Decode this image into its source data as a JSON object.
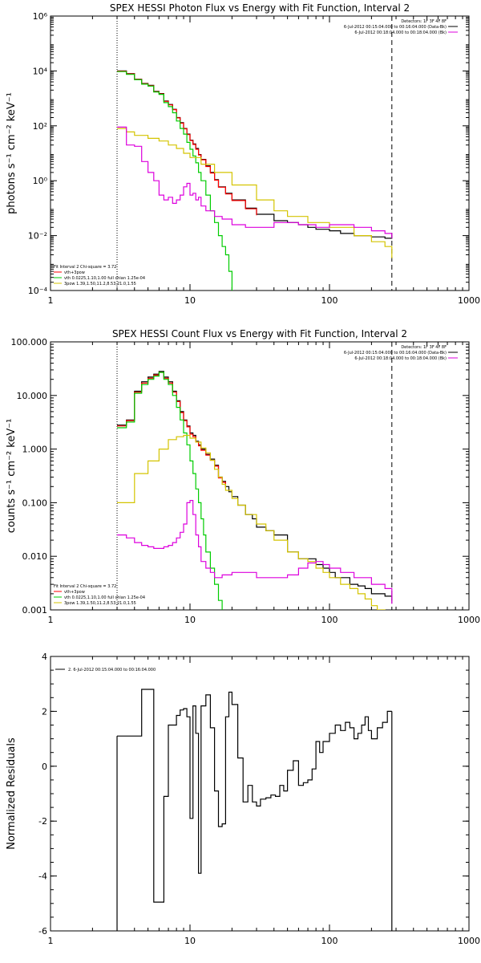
{
  "chart_data": [
    {
      "type": "line",
      "title": "SPEX HESSI Photon Flux vs Energy with Fit Function, Interval 2",
      "ylabel": "photons s⁻¹ cm⁻² keV⁻¹",
      "xlog": true,
      "ylog": true,
      "xlim": [
        1,
        1000
      ],
      "ylim": [
        0.0001,
        1000000
      ],
      "x_ticks": [
        {
          "v": 1,
          "label": "1"
        },
        {
          "v": 10,
          "label": "10"
        },
        {
          "v": 100,
          "label": "100"
        },
        {
          "v": 1000,
          "label": "1000"
        }
      ],
      "y_ticks": [
        {
          "v": 0.0001,
          "label": "10⁻⁴"
        },
        {
          "v": 0.01,
          "label": "10⁻²"
        },
        {
          "v": 1,
          "label": "10⁰"
        },
        {
          "v": 100,
          "label": "10²"
        },
        {
          "v": 10000,
          "label": "10⁴"
        },
        {
          "v": 1000000,
          "label": "10⁶"
        }
      ],
      "vlines": [
        {
          "x": 3,
          "style": "dotted"
        },
        {
          "x": 280,
          "style": "dashed"
        }
      ],
      "legend_right": [
        "Detectors: 1F 3F 4F 8F",
        "6-Jul-2012 00:15:04.000 to 00:16:04.000 (Data-Bk)",
        "6-Jul-2012 00:18:04.000 to 00:18:04.000 (Bk)"
      ],
      "legend_left": [
        "Fit Interval 2   Chi-square = 3.72",
        "vth+3pow",
        "vth 0.0225,1.10,1.00  full chian 1.25e-04",
        "3pow 1.39,1.50,11.2,8.53,21.0,1.55"
      ],
      "series": [
        {
          "name": "Data-Bk",
          "color": "#000000",
          "x": [
            3,
            3.5,
            4,
            4.5,
            5,
            5.5,
            6,
            6.5,
            7,
            7.5,
            8,
            8.5,
            9,
            9.5,
            10,
            10.5,
            11,
            11.5,
            12,
            13,
            14,
            15,
            16,
            18,
            20,
            25,
            30,
            40,
            50,
            60,
            70,
            80,
            100,
            120,
            150,
            200,
            250,
            280
          ],
          "y": [
            10000,
            8000,
            5000,
            3500,
            3000,
            1800,
            1500,
            800,
            600,
            400,
            200,
            130,
            80,
            50,
            30,
            22,
            15,
            9,
            6,
            3.5,
            2,
            1.1,
            0.6,
            0.35,
            0.2,
            0.1,
            0.06,
            0.035,
            0.03,
            0.025,
            0.02,
            0.017,
            0.015,
            0.012,
            0.01,
            0.009,
            0.008,
            0.011
          ]
        },
        {
          "name": "vth+3pow",
          "color": "#ff0000",
          "x": [
            3,
            3.5,
            4,
            4.5,
            5,
            5.5,
            6,
            6.5,
            7,
            7.5,
            8,
            8.5,
            9,
            9.5,
            10,
            10.5,
            11,
            11.5,
            12,
            13,
            14,
            15,
            16,
            18,
            20,
            25,
            30
          ],
          "y": [
            9800,
            7800,
            4900,
            3400,
            2900,
            1750,
            1450,
            780,
            580,
            390,
            195,
            125,
            78,
            48,
            29,
            21,
            14,
            8.7,
            5.8,
            3.3,
            1.9,
            1.05,
            0.58,
            0.33,
            0.19,
            0.095,
            0.055
          ]
        },
        {
          "name": "vth",
          "color": "#00cc00",
          "x": [
            3,
            3.5,
            4,
            4.5,
            5,
            5.5,
            6,
            6.5,
            7,
            7.5,
            8,
            8.5,
            9,
            9.5,
            10,
            10.5,
            11,
            11.5,
            12,
            13,
            14,
            15,
            16,
            17,
            18,
            19,
            20
          ],
          "y": [
            9500,
            7500,
            4800,
            3300,
            2800,
            1700,
            1400,
            700,
            500,
            300,
            150,
            80,
            50,
            25,
            14,
            8,
            4.5,
            2,
            1,
            0.3,
            0.08,
            0.03,
            0.01,
            0.004,
            0.002,
            0.0005,
            0.0001
          ]
        },
        {
          "name": "3pow",
          "color": "#d4c400",
          "x": [
            3,
            3.5,
            4,
            5,
            6,
            7,
            8,
            9,
            10,
            12,
            15,
            20,
            30,
            40,
            50,
            70,
            100,
            150,
            200,
            250,
            280
          ],
          "y": [
            80,
            60,
            45,
            35,
            28,
            20,
            15,
            10,
            7,
            4,
            2,
            0.7,
            0.2,
            0.08,
            0.05,
            0.03,
            0.02,
            0.01,
            0.006,
            0.004,
            0.0015
          ]
        },
        {
          "name": "background",
          "color": "#dd00dd",
          "x": [
            3,
            3.5,
            4,
            4.5,
            5,
            5.5,
            6,
            6.5,
            7,
            7.5,
            8,
            8.5,
            9,
            9.5,
            10,
            10.5,
            11,
            11.5,
            12,
            13,
            14,
            15,
            17,
            20,
            25,
            30,
            40,
            50,
            60,
            80,
            100,
            150,
            200,
            250,
            280
          ],
          "y": [
            90,
            20,
            18,
            5,
            2,
            1,
            0.3,
            0.2,
            0.25,
            0.15,
            0.2,
            0.3,
            0.6,
            0.8,
            0.3,
            0.35,
            0.2,
            0.25,
            0.12,
            0.08,
            0.08,
            0.05,
            0.04,
            0.025,
            0.02,
            0.02,
            0.03,
            0.03,
            0.025,
            0.02,
            0.025,
            0.02,
            0.015,
            0.012,
            0.008
          ]
        }
      ]
    },
    {
      "type": "line",
      "title": "SPEX HESSI Count Flux vs Energy with Fit Function, Interval 2",
      "ylabel": "counts s⁻¹ cm⁻² keV⁻¹",
      "xlog": true,
      "ylog": true,
      "xlim": [
        1,
        1000
      ],
      "ylim": [
        0.001,
        100
      ],
      "x_ticks": [
        {
          "v": 1,
          "label": "1"
        },
        {
          "v": 10,
          "label": "10"
        },
        {
          "v": 100,
          "label": "100"
        },
        {
          "v": 1000,
          "label": "1000"
        }
      ],
      "y_ticks": [
        {
          "v": 0.001,
          "label": "0.001"
        },
        {
          "v": 0.01,
          "label": "0.010"
        },
        {
          "v": 0.1,
          "label": "0.100"
        },
        {
          "v": 1,
          "label": "1.000"
        },
        {
          "v": 10,
          "label": "10.000"
        },
        {
          "v": 100,
          "label": "100.000"
        }
      ],
      "vlines": [
        {
          "x": 3,
          "style": "dotted"
        },
        {
          "x": 280,
          "style": "dashed"
        }
      ],
      "legend_right": [
        "Detectors: 1F 3F 4F 8F",
        "6-Jul-2012 00:15:04.000 to 00:16:04.000 (Data-Bk)",
        "6-Jul-2012 00:18:04.000 to 00:18:04.000 (Bk)"
      ],
      "legend_left": [
        "Fit Interval 2   Chi-square = 3.72",
        "vth+3pow",
        "vth 0.0225,1.10,1.00  full chian 1.25e-04",
        "3pow 1.39,1.50,11.2,8.53,21.0,1.55"
      ],
      "series": [
        {
          "name": "Data-Bk",
          "color": "#000000",
          "x": [
            3,
            3.5,
            4,
            4.5,
            5,
            5.5,
            6,
            6.5,
            7,
            7.5,
            8,
            8.5,
            9,
            9.5,
            10,
            10.5,
            11,
            11.5,
            12,
            13,
            14,
            15,
            16,
            17,
            18,
            19,
            20,
            22,
            25,
            28,
            30,
            35,
            40,
            50,
            60,
            70,
            80,
            90,
            100,
            110,
            120,
            140,
            160,
            180,
            200,
            220,
            250,
            280
          ],
          "y": [
            2.8,
            3.5,
            12,
            18,
            22,
            25,
            28,
            22,
            18,
            12,
            8,
            5,
            3.5,
            2.7,
            2,
            1.8,
            1.4,
            1.2,
            1,
            0.8,
            0.65,
            0.5,
            0.3,
            0.25,
            0.2,
            0.16,
            0.13,
            0.09,
            0.06,
            0.05,
            0.035,
            0.03,
            0.025,
            0.012,
            0.009,
            0.009,
            0.007,
            0.006,
            0.005,
            0.004,
            0.004,
            0.003,
            0.0028,
            0.0025,
            0.002,
            0.002,
            0.0018,
            0.0015
          ]
        },
        {
          "name": "vth+3pow",
          "color": "#ff0000",
          "x": [
            3,
            3.5,
            4,
            4.5,
            5,
            5.5,
            6,
            6.5,
            7,
            7.5,
            8,
            8.5,
            9,
            9.5,
            10,
            10.5,
            11,
            11.5,
            12,
            13,
            14,
            15,
            16,
            17,
            18
          ],
          "y": [
            2.7,
            3.4,
            11.5,
            17,
            21,
            24,
            27,
            21,
            17,
            11.5,
            7.7,
            4.8,
            3.4,
            2.6,
            1.9,
            1.7,
            1.35,
            1.15,
            0.95,
            0.77,
            0.62,
            0.48,
            0.29,
            0.24,
            0.19
          ]
        },
        {
          "name": "vth",
          "color": "#00cc00",
          "x": [
            3,
            3.5,
            4,
            4.5,
            5,
            5.5,
            6,
            6.5,
            7,
            7.5,
            8,
            8.5,
            9,
            9.5,
            10,
            10.5,
            11,
            11.5,
            12,
            12.5,
            13,
            14,
            15,
            16,
            17
          ],
          "y": [
            2.5,
            3.2,
            11,
            16,
            20,
            23,
            27,
            20,
            16,
            10,
            6,
            3.5,
            2,
            1.2,
            0.6,
            0.35,
            0.18,
            0.1,
            0.05,
            0.025,
            0.012,
            0.006,
            0.003,
            0.0015,
            0.0008
          ]
        },
        {
          "name": "3pow",
          "color": "#d4c400",
          "x": [
            3,
            3.5,
            4,
            5,
            6,
            7,
            8,
            9,
            10,
            11,
            12,
            13,
            14,
            15,
            16,
            17,
            18,
            20,
            22,
            25,
            30,
            35,
            40,
            50,
            60,
            70,
            80,
            90,
            100,
            120,
            140,
            160,
            180,
            200,
            220,
            250
          ],
          "y": [
            0.1,
            0.1,
            0.35,
            0.6,
            1,
            1.5,
            1.7,
            1.8,
            1.6,
            1.35,
            1.05,
            0.85,
            0.62,
            0.42,
            0.3,
            0.22,
            0.17,
            0.12,
            0.09,
            0.06,
            0.04,
            0.03,
            0.02,
            0.012,
            0.009,
            0.008,
            0.006,
            0.005,
            0.004,
            0.003,
            0.0025,
            0.002,
            0.0016,
            0.0012,
            0.001,
            0.0008
          ]
        },
        {
          "name": "background",
          "color": "#dd00dd",
          "x": [
            3,
            3.5,
            4,
            4.5,
            5,
            5.5,
            6,
            6.5,
            7,
            7.5,
            8,
            8.5,
            9,
            9.5,
            10,
            10.5,
            11,
            11.5,
            12,
            13,
            14,
            15,
            17,
            20,
            25,
            30,
            40,
            50,
            60,
            70,
            80,
            90,
            100,
            120,
            150,
            200,
            250,
            280
          ],
          "y": [
            0.025,
            0.022,
            0.018,
            0.016,
            0.015,
            0.014,
            0.014,
            0.015,
            0.016,
            0.018,
            0.022,
            0.028,
            0.04,
            0.1,
            0.11,
            0.06,
            0.025,
            0.015,
            0.008,
            0.006,
            0.005,
            0.004,
            0.0045,
            0.005,
            0.005,
            0.004,
            0.004,
            0.0045,
            0.006,
            0.0075,
            0.008,
            0.007,
            0.006,
            0.005,
            0.004,
            0.003,
            0.0025,
            0.0013
          ]
        }
      ]
    },
    {
      "type": "line",
      "ylabel": "Normalized Residuals",
      "xlog": true,
      "ylog": false,
      "xlim": [
        1,
        1000
      ],
      "ylim": [
        -6,
        4
      ],
      "x_ticks": [
        {
          "v": 1,
          "label": "1"
        },
        {
          "v": 10,
          "label": "10"
        },
        {
          "v": 100,
          "label": "100"
        },
        {
          "v": 1000,
          "label": "1000"
        }
      ],
      "y_ticks": [
        {
          "v": -6,
          "label": "-6"
        },
        {
          "v": -4,
          "label": "-4"
        },
        {
          "v": -2,
          "label": "-2"
        },
        {
          "v": 0,
          "label": "0"
        },
        {
          "v": 2,
          "label": "2"
        },
        {
          "v": 4,
          "label": "4"
        }
      ],
      "legend_left": [
        "2.  6-Jul-2012 00:15:04.000 to 00:16:04.000"
      ],
      "series": [
        {
          "name": "residuals",
          "color": "#000000",
          "x": [
            3,
            3.5,
            4,
            4.5,
            5,
            5.5,
            6,
            6.5,
            7,
            7.5,
            8,
            8.5,
            9,
            9.5,
            10,
            10.5,
            11,
            11.5,
            12,
            13,
            14,
            15,
            16,
            17,
            18,
            19,
            20,
            22,
            24,
            26,
            28,
            30,
            32,
            35,
            38,
            41,
            44,
            47,
            50,
            55,
            60,
            65,
            70,
            75,
            80,
            85,
            90,
            100,
            110,
            120,
            130,
            140,
            150,
            160,
            170,
            180,
            190,
            200,
            220,
            240,
            260,
            280
          ],
          "y": [
            1.1,
            1.1,
            1.1,
            2.8,
            2.8,
            -4.95,
            -4.95,
            -1.1,
            1.5,
            1.5,
            1.85,
            2.05,
            2.1,
            1.8,
            -1.9,
            2.2,
            1.2,
            -3.9,
            2.2,
            2.6,
            1.4,
            -0.9,
            -2.2,
            -2.1,
            1.8,
            2.7,
            2.25,
            0.3,
            -1.3,
            -0.7,
            -1.3,
            -1.45,
            -1.2,
            -1.15,
            -1.05,
            -1.1,
            -0.7,
            -0.9,
            -0.15,
            0.2,
            -0.7,
            -0.6,
            -0.5,
            -0.1,
            0.9,
            0.5,
            0.9,
            1.2,
            1.5,
            1.3,
            1.6,
            1.4,
            1.0,
            1.2,
            1.5,
            1.8,
            1.3,
            1.0,
            1.4,
            1.6,
            2.0,
            2.0
          ]
        }
      ]
    }
  ]
}
